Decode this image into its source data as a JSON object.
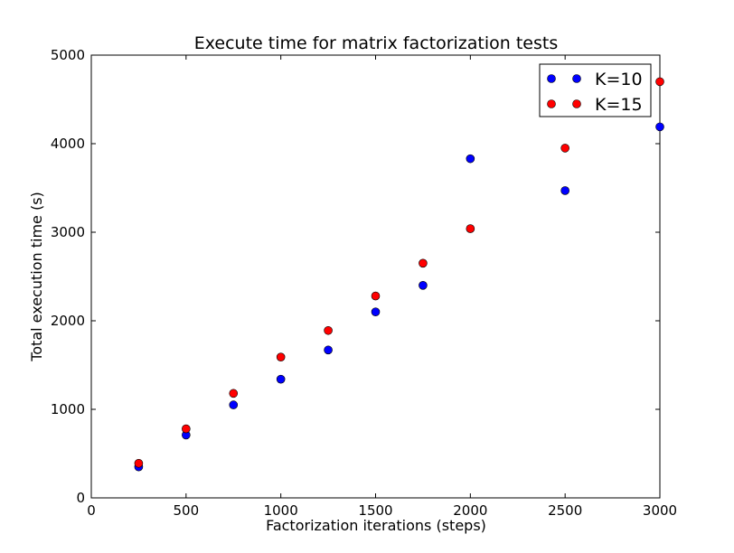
{
  "chart_data": {
    "type": "scatter",
    "title": "Execute time for matrix factorization tests",
    "xlabel": "Factorization iterations (steps)",
    "ylabel": "Total execution time (s)",
    "xlim": [
      0,
      3000
    ],
    "ylim": [
      0,
      5000
    ],
    "xticks": [
      "0",
      "500",
      "1000",
      "1500",
      "2000",
      "2500",
      "3000"
    ],
    "yticks": [
      "0",
      "1000",
      "2000",
      "3000",
      "4000",
      "5000"
    ],
    "grid": false,
    "legend_position": "top-right",
    "series": [
      {
        "name": "K=10",
        "color": "#0000ff",
        "x": [
          250,
          500,
          750,
          1000,
          1250,
          1500,
          1750,
          2000,
          2500,
          3000
        ],
        "y": [
          350,
          710,
          1050,
          1340,
          1670,
          2100,
          2400,
          3830,
          3470,
          4190
        ]
      },
      {
        "name": "K=15",
        "color": "#ff0000",
        "x": [
          250,
          500,
          750,
          1000,
          1250,
          1500,
          1750,
          2000,
          2500,
          3000
        ],
        "y": [
          390,
          780,
          1180,
          1590,
          1890,
          2280,
          2650,
          3040,
          3950,
          4700
        ]
      }
    ]
  }
}
